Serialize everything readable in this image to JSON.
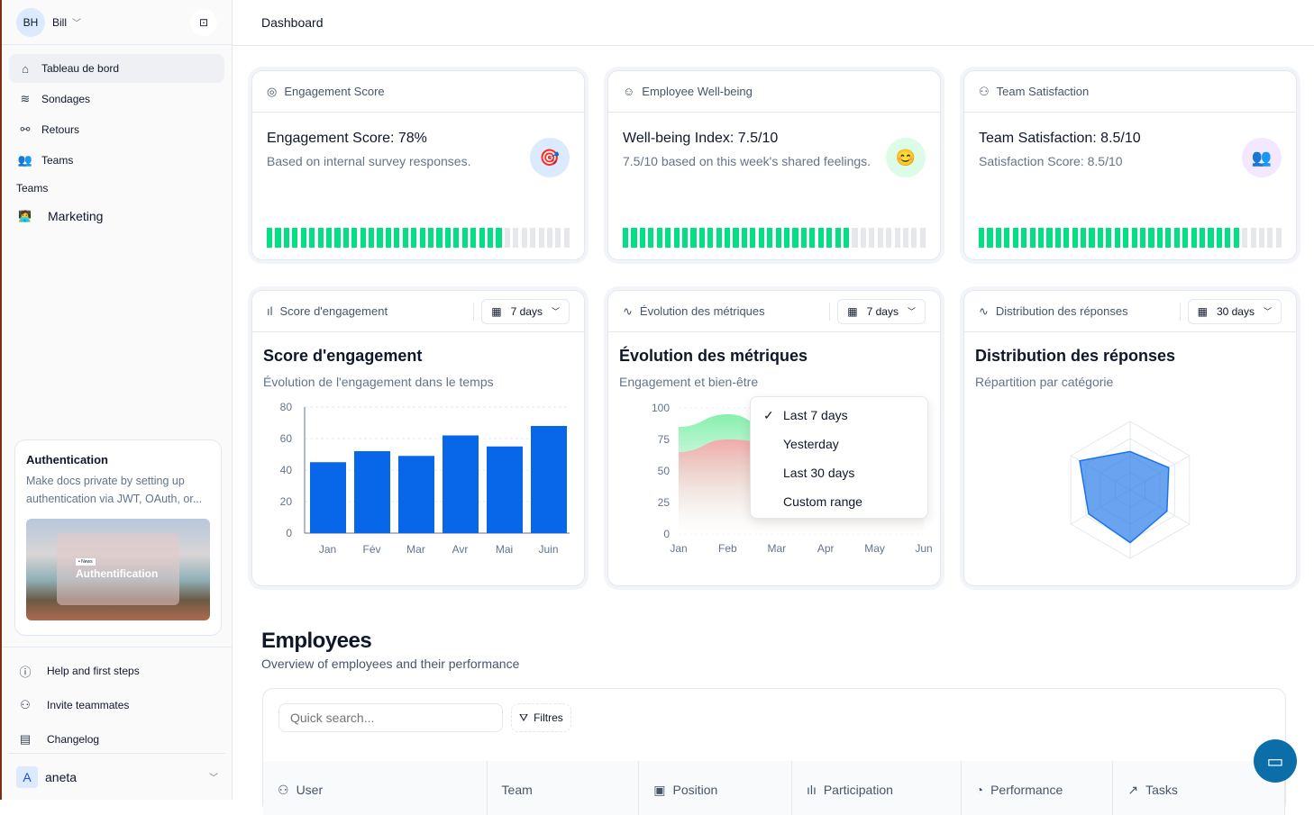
{
  "user": {
    "initials": "BH",
    "name": "Bill"
  },
  "nav": [
    {
      "label": "Tableau de bord",
      "icon": "home-icon"
    },
    {
      "label": "Sondages",
      "icon": "layers-icon"
    },
    {
      "label": "Retours",
      "icon": "plug-icon"
    },
    {
      "label": "Teams",
      "icon": "users-icon"
    }
  ],
  "teams_heading": "Teams",
  "teams": [
    {
      "label": "Marketing",
      "icon": "technologist-emoji"
    }
  ],
  "promo": {
    "title": "Authentication",
    "text": "Make docs private by setting up authentication via JWT, OAuth, or...",
    "badge": "• News",
    "image_title": "Authentification"
  },
  "footer_links": [
    {
      "label": "Help and first steps",
      "icon": "help-circle-icon"
    },
    {
      "label": "Invite teammates",
      "icon": "user-plus-icon"
    },
    {
      "label": "Changelog",
      "icon": "newspaper-icon"
    }
  ],
  "account": {
    "initial": "A",
    "name": "aneta"
  },
  "page_title": "Dashboard",
  "kpis": [
    {
      "header": "Engagement Score",
      "title": "Engagement Score: 78%",
      "subtitle": "Based on internal survey responses.",
      "emoji": "🎯",
      "emoji_bg": "#dbeafe",
      "progress": 78
    },
    {
      "header": "Employee Well-being",
      "title": "Well-being Index: 7.5/10",
      "subtitle": "7.5/10 based on this week's shared feelings.",
      "emoji": "😊",
      "emoji_bg": "#dcfce7",
      "progress": 75
    },
    {
      "header": "Team Satisfaction",
      "title": "Team Satisfaction: 8.5/10",
      "subtitle": "Satisfaction Score: 8.5/10",
      "emoji": "👥",
      "emoji_bg": "#f3e8ff",
      "progress": 85
    }
  ],
  "colors": {
    "progress_on": "#05df84",
    "progress_off": "#e5e7eb",
    "bar": "#0866e8",
    "green_area": "#86efac",
    "red_area": "#f2aaaa",
    "radar": "#1a73e8"
  },
  "charts": [
    {
      "header": "Score d'engagement",
      "range": "7 days",
      "title": "Score d'engagement",
      "subtitle": "Évolution de l'engagement dans le temps"
    },
    {
      "header": "Évolution des métriques",
      "range": "7 days",
      "title": "Évolution des métriques",
      "subtitle": "Engagement et bien-être"
    },
    {
      "header": "Distribution des réponses",
      "range": "30 days",
      "title": "Distribution des réponses",
      "subtitle": "Répartition par catégorie"
    }
  ],
  "dropdown": {
    "options": [
      "Last 7 days",
      "Yesterday",
      "Last 30 days",
      "Custom range"
    ],
    "selected": "Last 7 days"
  },
  "chart_data": [
    {
      "type": "bar",
      "categories": [
        "Jan",
        "Fév",
        "Mar",
        "Avr",
        "Mai",
        "Juin"
      ],
      "values": [
        45,
        52,
        49,
        62,
        55,
        68
      ],
      "ylim": [
        0,
        80
      ],
      "yticks": [
        0,
        20,
        40,
        60,
        80
      ],
      "grid": true
    },
    {
      "type": "area",
      "categories": [
        "Jan",
        "Feb",
        "Mar",
        "Apr",
        "May",
        "Jun"
      ],
      "series": [
        {
          "values": [
            85,
            95,
            82,
            60,
            80,
            82
          ]
        },
        {
          "values": [
            65,
            75,
            72,
            60,
            66,
            70
          ]
        }
      ],
      "ylim": [
        0,
        100
      ],
      "yticks": [
        0,
        25,
        50,
        75,
        100
      ],
      "grid": true
    },
    {
      "type": "radar",
      "axes": 6,
      "values": [
        56,
        65,
        62,
        77,
        70,
        85
      ],
      "rlim": [
        0,
        100
      ]
    }
  ],
  "employees": {
    "title": "Employees",
    "subtitle": "Overview of employees and their performance",
    "search_placeholder": "Quick search...",
    "filter_label": "Filtres",
    "columns": [
      {
        "label": "User",
        "icon": "user-icon"
      },
      {
        "label": "Team",
        "icon": ""
      },
      {
        "label": "Position",
        "icon": "briefcase-icon"
      },
      {
        "label": "Participation",
        "icon": "bar-chart-icon"
      },
      {
        "label": "Performance",
        "icon": "pie-chart-icon"
      },
      {
        "label": "Tasks",
        "icon": "trending-up-icon"
      }
    ]
  }
}
